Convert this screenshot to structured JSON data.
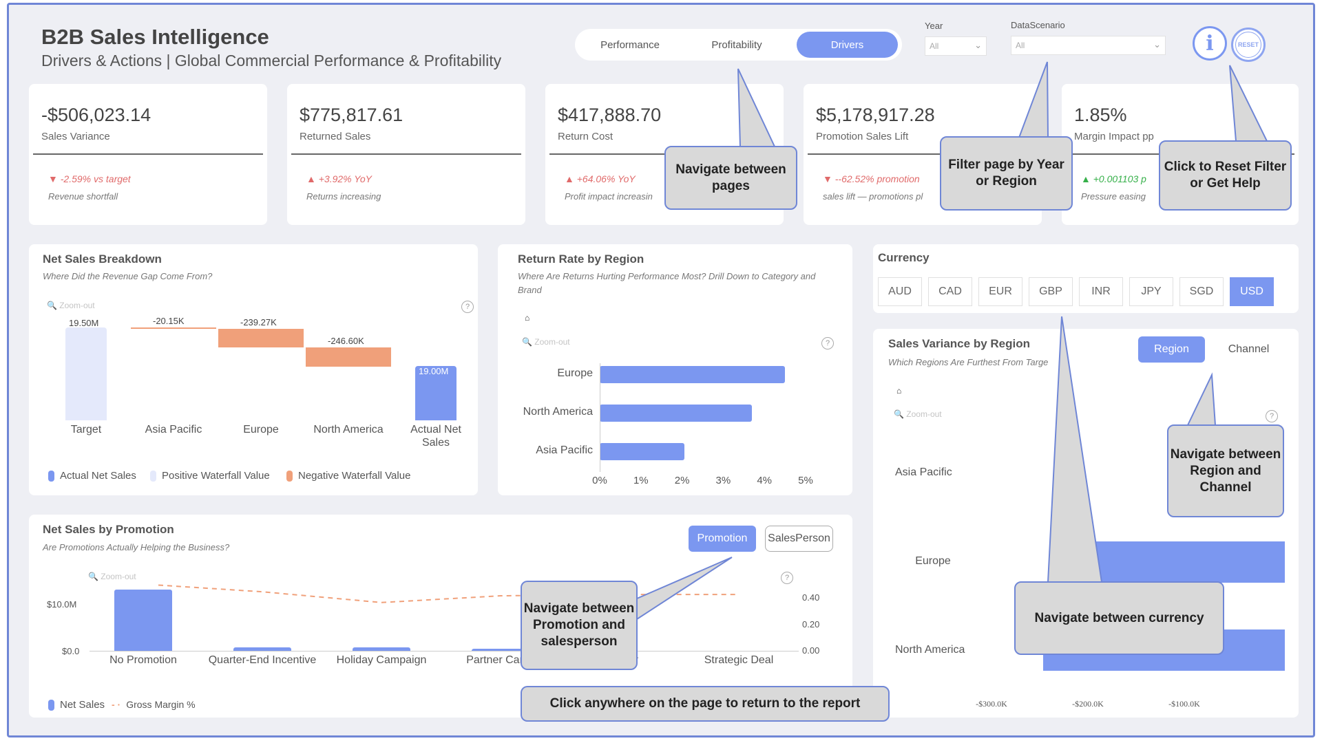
{
  "header": {
    "title": "B2B Sales Intelligence",
    "subtitle": "Drivers & Actions | Global Commercial Performance & Profitability",
    "pages": [
      "Performance",
      "Profitability",
      "Drivers"
    ],
    "active_page": "Drivers",
    "filters": {
      "year": {
        "label": "Year",
        "value": "All"
      },
      "scenario": {
        "label": "DataScenario",
        "value": "All"
      }
    },
    "info_icon": "info-icon",
    "reset_label": "RESET"
  },
  "kpis": [
    {
      "value": "-$506,023.14",
      "label": "Sales Variance",
      "delta": "-2.59% vs target",
      "direction": "down",
      "note": "Revenue shortfall"
    },
    {
      "value": "$775,817.61",
      "label": "Returned Sales",
      "delta": "+3.92% YoY",
      "direction": "up-bad",
      "note": "Returns increasing"
    },
    {
      "value": "$417,888.70",
      "label": "Return Cost",
      "delta": "+64.06% YoY",
      "direction": "up-bad",
      "note": "Profit impact increasin"
    },
    {
      "value": "$5,178,917.28",
      "label": "Promotion Sales Lift",
      "delta": "--62.52% promotion",
      "direction": "down",
      "note": "sales lift — promotions pl"
    },
    {
      "value": "1.85%",
      "label": "Margin Impact pp",
      "delta": "+0.001103 p",
      "direction": "up-good",
      "note": "Pressure easing"
    }
  ],
  "net_sales_breakdown": {
    "title": "Net Sales Breakdown",
    "subtitle": "Where Did the Revenue Gap Come From?",
    "zoom_label": "Zoom-out",
    "legend": [
      "Actual Net Sales",
      "Positive Waterfall Value",
      "Negative Waterfall Value"
    ]
  },
  "return_rate": {
    "title": "Return Rate by Region",
    "subtitle": "Where Are Returns Hurting Performance Most? Drill Down to Category and Brand",
    "zoom_label": "Zoom-out"
  },
  "currency": {
    "title": "Currency",
    "options": [
      "AUD",
      "CAD",
      "EUR",
      "GBP",
      "INR",
      "JPY",
      "SGD",
      "USD"
    ],
    "selected": "USD"
  },
  "sales_variance": {
    "title": "Sales Variance by Region",
    "subtitle": "Which Regions Are Furthest From Targe",
    "toggle": [
      "Region",
      "Channel"
    ],
    "selected": "Region",
    "zoom_label": "Zoom-out"
  },
  "net_sales_promotion": {
    "title": "Net Sales by Promotion",
    "subtitle": "Are Promotions Actually Helping the Business?",
    "toggle": [
      "Promotion",
      "SalesPerson"
    ],
    "selected": "Promotion",
    "zoom_label": "Zoom-out",
    "legend": [
      "Net Sales",
      "Gross Margin %"
    ]
  },
  "callouts": {
    "pages": "Navigate between pages",
    "filter": "Filter page by Year or Region",
    "reset": "Click to Reset Filter or Get Help",
    "region_channel": "Navigate between Region and Channel",
    "currency": "Navigate between currency",
    "promotion": "Navigate between Promotion and salesperson",
    "return": "Click anywhere on the page  to return to the report"
  },
  "colors": {
    "accent": "#7b97f0",
    "positive_waterfall": "#e4e9fb",
    "negative_waterfall": "#f0a07a",
    "negative_text": "#e06a6a",
    "positive_text": "#36b04a",
    "callout_border": "#6f86d6"
  },
  "chart_data": [
    {
      "type": "bar",
      "subtype": "waterfall",
      "categories": [
        "Target",
        "Asia Pacific",
        "Europe",
        "North America",
        "Actual Net Sales"
      ],
      "values": [
        19.5,
        -0.02015,
        -0.23927,
        -0.2466,
        19.0
      ],
      "value_labels": [
        "19.50M",
        "-20.15K",
        "-239.27K",
        "-246.60K",
        "19.00M"
      ],
      "unit": "M"
    },
    {
      "type": "bar",
      "orientation": "horizontal",
      "categories": [
        "Europe",
        "North America",
        "Asia Pacific"
      ],
      "values": [
        4.5,
        3.7,
        2.05
      ],
      "xticks": [
        "0%",
        "1%",
        "2%",
        "3%",
        "4%",
        "5%"
      ],
      "xlim": [
        0,
        5
      ]
    },
    {
      "type": "bar",
      "orientation": "horizontal",
      "categories": [
        "Asia Pacific",
        "Europe",
        "North America"
      ],
      "xticks": [
        "-$300.0K",
        "-$200.0K",
        "-$100.0K"
      ]
    },
    {
      "type": "bar",
      "combo_line": "Gross Margin %",
      "categories": [
        "No Promotion",
        "Quarter-End Incentive",
        "Holiday Campaign",
        "Partner Camp",
        "er Offer",
        "Strategic Deal"
      ],
      "values": [
        13.5,
        0.8,
        0.8,
        0.5,
        0.0,
        0.0
      ],
      "line_values": [
        0.49,
        0.44,
        0.36,
        0.41,
        0.42,
        0.42
      ],
      "yticks_left": [
        "$10.0M",
        "$0.0"
      ],
      "yticks_right": [
        "0.40",
        "0.20",
        "0.00"
      ]
    }
  ]
}
